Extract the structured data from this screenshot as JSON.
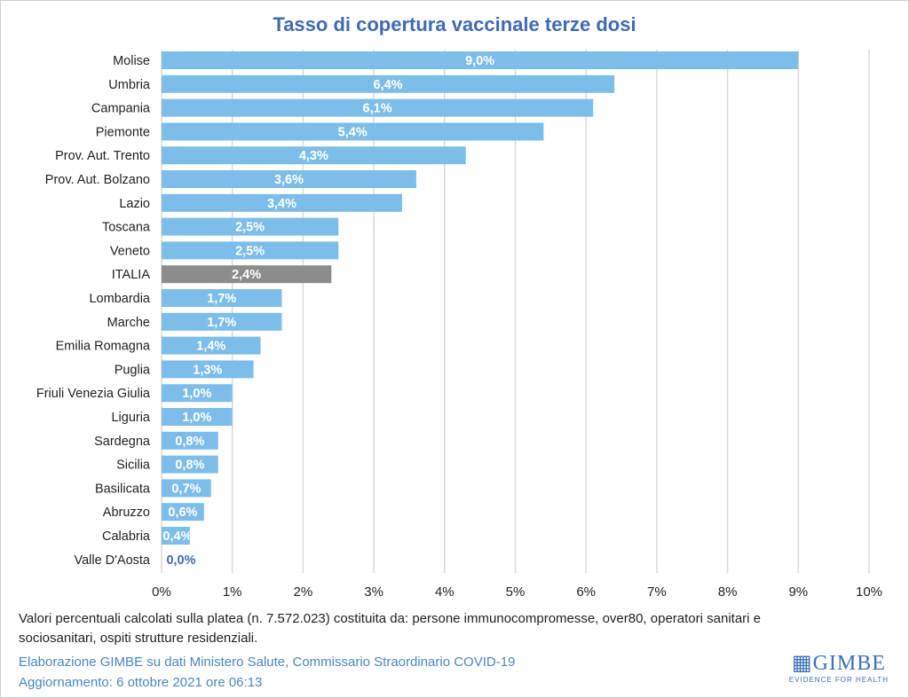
{
  "chart_data": {
    "type": "bar",
    "orientation": "horizontal",
    "title": "Tasso di copertura vaccinale terze dosi",
    "categories": [
      "Molise",
      "Umbria",
      "Campania",
      "Piemonte",
      "Prov. Aut. Trento",
      "Prov. Aut. Bolzano",
      "Lazio",
      "Toscana",
      "Veneto",
      "ITALIA",
      "Lombardia",
      "Marche",
      "Emilia Romagna",
      "Puglia",
      "Friuli Venezia Giulia",
      "Liguria",
      "Sardegna",
      "Sicilia",
      "Basilicata",
      "Abruzzo",
      "Calabria",
      "Valle D'Aosta"
    ],
    "values": [
      9.0,
      6.4,
      6.1,
      5.4,
      4.3,
      3.6,
      3.4,
      2.5,
      2.5,
      2.4,
      1.7,
      1.7,
      1.4,
      1.3,
      1.0,
      1.0,
      0.8,
      0.8,
      0.7,
      0.6,
      0.4,
      0.0
    ],
    "data_labels": [
      "9,0%",
      "6,4%",
      "6,1%",
      "5,4%",
      "4,3%",
      "3,6%",
      "3,4%",
      "2,5%",
      "2,5%",
      "2,4%",
      "1,7%",
      "1,7%",
      "1,4%",
      "1,3%",
      "1,0%",
      "1,0%",
      "0,8%",
      "0,8%",
      "0,7%",
      "0,6%",
      "0,4%",
      "0,0%"
    ],
    "xlim": [
      0,
      10
    ],
    "xticks": [
      "0%",
      "1%",
      "2%",
      "3%",
      "4%",
      "5%",
      "6%",
      "7%",
      "8%",
      "9%",
      "10%"
    ],
    "grid": true,
    "colors": {
      "bar": "#7dbde9",
      "highlight": "#8c8c8c",
      "highlight_category": "ITALIA",
      "title": "#3f6bb5"
    }
  },
  "footer": {
    "note": "Valori percentuali calcolati sulla platea (n. 7.572.023) costituita da: persone immunocompromesse, over80, operatori sanitari e sociosanitari, ospiti strutture residenziali.",
    "source": "Elaborazione GIMBE su dati Ministero Salute, Commissario Straordinario COVID-19",
    "updated": "Aggiornamento: 6 ottobre 2021 ore 06:13"
  },
  "logo": {
    "name": "GIMBE",
    "tagline": "EVIDENCE FOR HEALTH"
  }
}
